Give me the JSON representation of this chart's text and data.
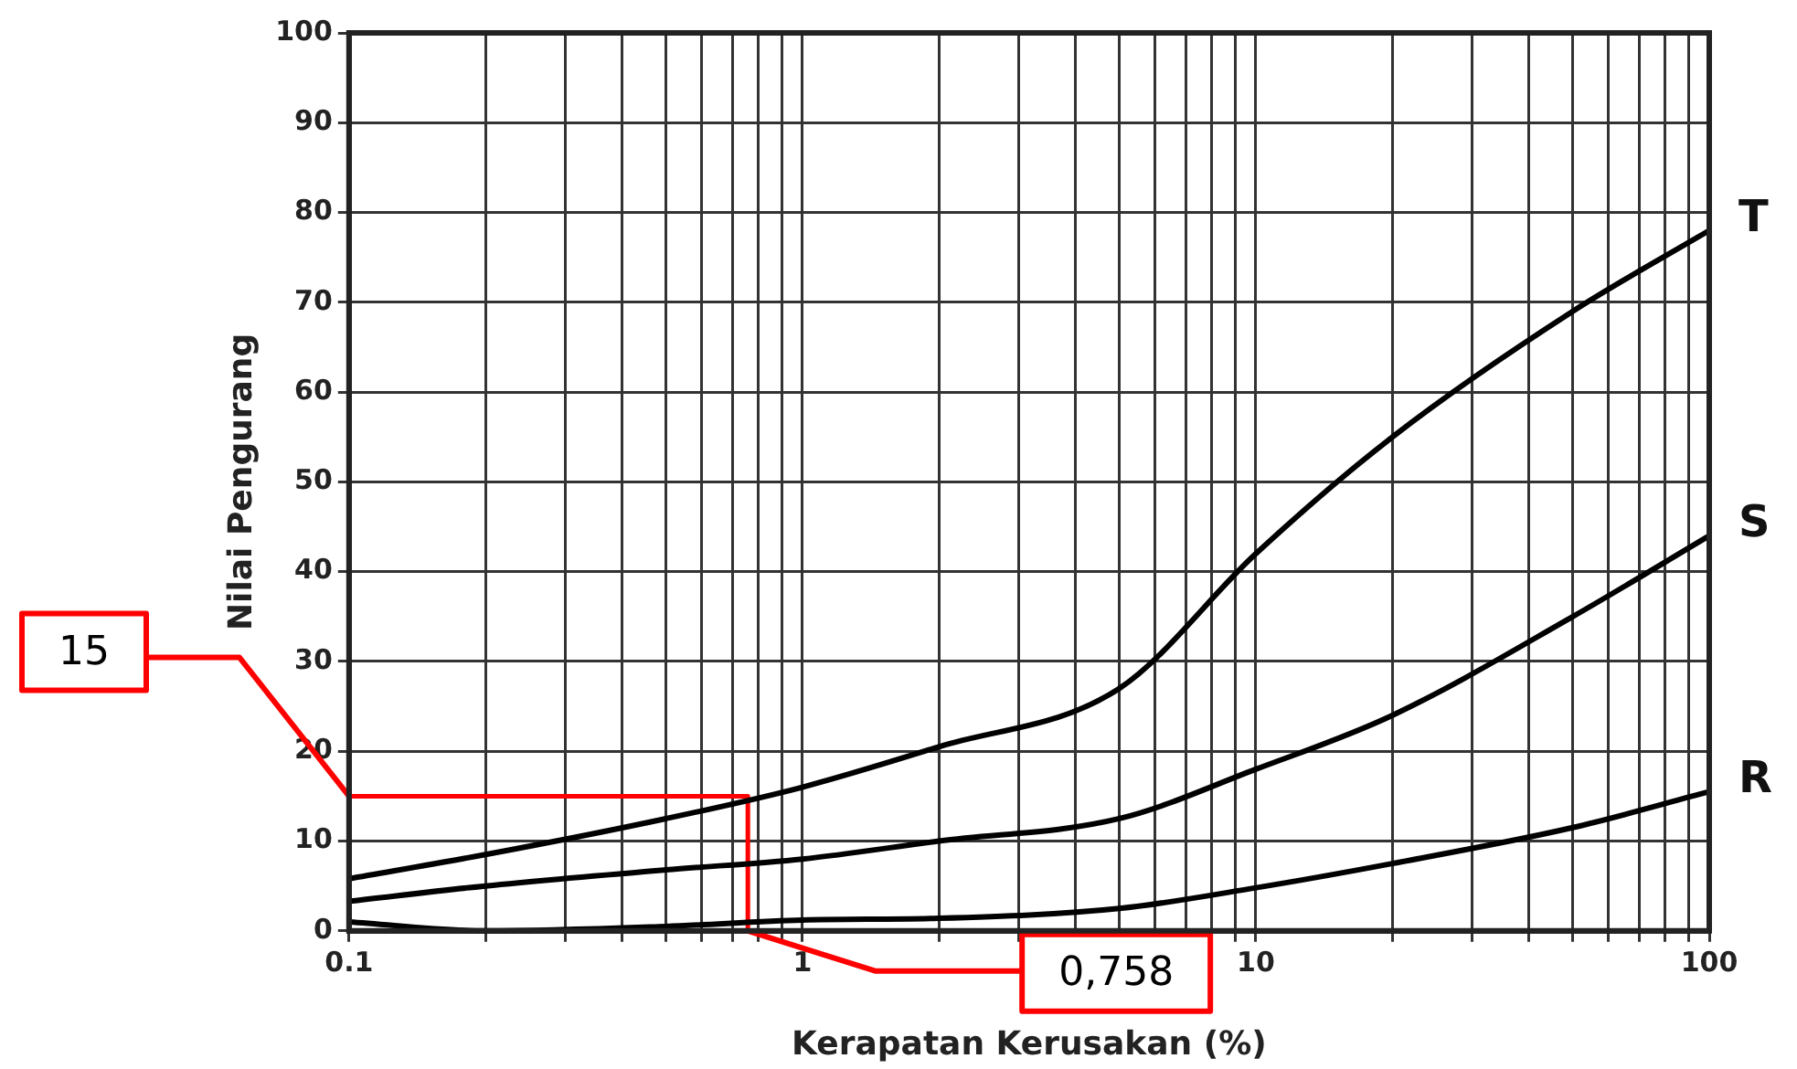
{
  "chart_data": {
    "type": "line",
    "xlabel": "Kerapatan Kerusakan (%)",
    "ylabel": "Nilai Pengurang",
    "log": "x",
    "grid": true,
    "legend": false,
    "marker": "none",
    "line_style": "solid",
    "xlim": [
      0.1,
      100
    ],
    "ylim": [
      0,
      100
    ],
    "xticks": [
      0.1,
      {
        "value": 0.2,
        "label": null
      },
      {
        "value": 0.3,
        "label": null
      },
      {
        "value": 0.4,
        "label": null
      },
      {
        "value": 0.5,
        "label": null
      },
      {
        "value": 0.6,
        "label": null
      },
      {
        "value": 0.7,
        "label": null
      },
      {
        "value": 0.8,
        "label": null
      },
      {
        "value": 0.9,
        "label": null
      },
      1,
      {
        "value": 2,
        "label": null
      },
      {
        "value": 3,
        "label": null
      },
      {
        "value": 4,
        "label": null
      },
      {
        "value": 5,
        "label": null
      },
      {
        "value": 6,
        "label": null
      },
      {
        "value": 7,
        "label": null
      },
      {
        "value": 8,
        "label": null
      },
      {
        "value": 9,
        "label": null
      },
      10,
      {
        "value": 20,
        "label": null
      },
      {
        "value": 30,
        "label": null
      },
      {
        "value": 40,
        "label": null
      },
      {
        "value": 50,
        "label": null
      },
      {
        "value": 60,
        "label": null
      },
      {
        "value": 70,
        "label": null
      },
      {
        "value": 80,
        "label": null
      },
      {
        "value": 90,
        "label": null
      },
      100
    ],
    "yticks": [
      0,
      10,
      20,
      30,
      40,
      50,
      60,
      70,
      80,
      90,
      100
    ],
    "series": [
      {
        "name": "T",
        "color": "#000000",
        "x": [
          0.1,
          0.2,
          0.5,
          1,
          2,
          5,
          10,
          20,
          50,
          100
        ],
        "values": [
          5.8,
          8.5,
          12.5,
          16,
          20.5,
          27,
          42,
          55,
          69,
          78
        ]
      },
      {
        "name": "S",
        "color": "#000000",
        "x": [
          0.1,
          0.2,
          0.5,
          1,
          2,
          5,
          10,
          20,
          50,
          100
        ],
        "values": [
          3.3,
          5,
          6.8,
          8,
          10,
          12.5,
          18,
          24,
          35,
          44
        ]
      },
      {
        "name": "R",
        "color": "#000000",
        "x": [
          0.1,
          0.2,
          0.5,
          1,
          2,
          5,
          10,
          20,
          50,
          100
        ],
        "values": [
          1,
          0,
          0.5,
          1.2,
          1.4,
          2.5,
          4.8,
          7.5,
          11.5,
          15.5
        ]
      },
      {
        "color": "#ff0000",
        "x": [
          0.1,
          0.758,
          0.758
        ],
        "values": [
          15,
          15,
          0
        ]
      }
    ],
    "annotations": [
      {
        "text": "15",
        "x": 0.1,
        "y": 15
      },
      {
        "text": "0,758",
        "x": 0.758,
        "y": 0
      }
    ]
  }
}
